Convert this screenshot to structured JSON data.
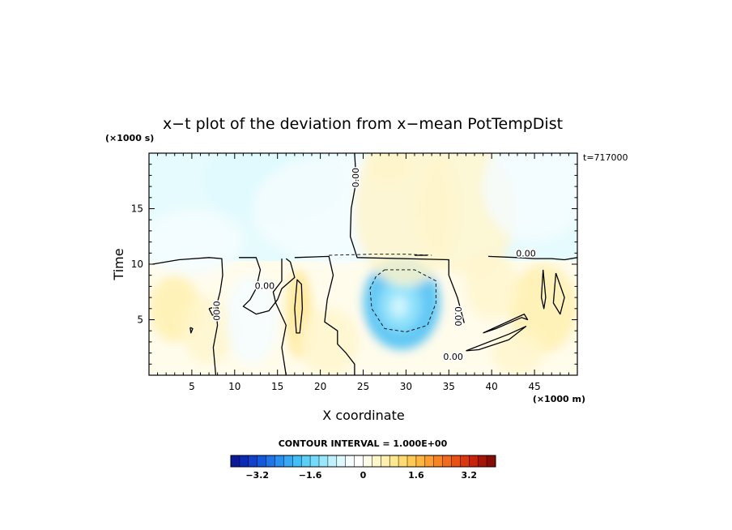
{
  "chart_data": {
    "type": "heatmap",
    "title": "x−t plot of the deviation from x−mean PotTempDist",
    "xlabel": "X coordinate",
    "ylabel": "Time",
    "x_unit": "(×1000 m)",
    "y_unit": "(×1000 s)",
    "time_stamp": "t=717000",
    "xlim": [
      0,
      50
    ],
    "ylim": [
      0,
      20
    ],
    "x_ticks": [
      5,
      10,
      15,
      20,
      25,
      30,
      35,
      40,
      45
    ],
    "y_ticks": [
      5,
      10,
      15
    ],
    "contour_label": "0.00",
    "contour_interval_text": "CONTOUR INTERVAL = 1.000E+00",
    "colorbar": {
      "range": [
        -4,
        4
      ],
      "tick_values": [
        -3.2,
        -1.6,
        0,
        1.6,
        3.2
      ],
      "tick_labels": [
        "−3.2",
        "−1.6",
        "0",
        "1.6",
        "3.2"
      ],
      "colors": [
        "#0a1a9a",
        "#0c2ab4",
        "#1040cc",
        "#1458dc",
        "#1e74e8",
        "#2a90f0",
        "#36a8f4",
        "#44bef6",
        "#58d0f8",
        "#74dcfa",
        "#98e8fb",
        "#bff2fd",
        "#def9fe",
        "#f4fdff",
        "#ffffff",
        "#fffbe6",
        "#fff6cc",
        "#fff0b0",
        "#ffe890",
        "#ffda70",
        "#ffca54",
        "#ffb640",
        "#ff9e30",
        "#fa8424",
        "#f26a1c",
        "#e85014",
        "#dc3810",
        "#c8240c",
        "#a81408",
        "#880c06"
      ]
    },
    "blobs": [
      {
        "x": 29.5,
        "y": 6.5,
        "rx": 4.5,
        "ry": 4.2,
        "v": -2.0
      },
      {
        "x": 29.3,
        "y": 6.3,
        "rx": 2.4,
        "ry": 2.3,
        "v": -1.2
      },
      {
        "x": 29.2,
        "y": 6.2,
        "rx": 1.0,
        "ry": 1.0,
        "v": -0.6
      },
      {
        "x": 14.5,
        "y": 17.5,
        "rx": 8,
        "ry": 3.5,
        "v": -0.7
      },
      {
        "x": 22,
        "y": 15,
        "rx": 10,
        "ry": 5,
        "v": -0.35
      },
      {
        "x": 5,
        "y": 12,
        "rx": 6,
        "ry": 3,
        "v": -0.3
      },
      {
        "x": 30,
        "y": 15,
        "rx": 6,
        "ry": 7,
        "v": 0.45
      },
      {
        "x": 28,
        "y": 19,
        "rx": 3,
        "ry": 2,
        "v": 0.35
      },
      {
        "x": 17.5,
        "y": 5.5,
        "rx": 1.5,
        "ry": 4,
        "v": 0.9
      },
      {
        "x": 21,
        "y": 3,
        "rx": 3.5,
        "ry": 3,
        "v": 0.5
      },
      {
        "x": 3,
        "y": 6,
        "rx": 3,
        "ry": 3,
        "v": 0.7
      },
      {
        "x": 7,
        "y": 4,
        "rx": 3,
        "ry": 3,
        "v": 0.45
      },
      {
        "x": 12,
        "y": 5,
        "rx": 3,
        "ry": 4,
        "v": -0.35
      },
      {
        "x": 46,
        "y": 6,
        "rx": 4,
        "ry": 4,
        "v": 0.6
      },
      {
        "x": 43,
        "y": 2,
        "rx": 3,
        "ry": 2,
        "v": 0.4
      },
      {
        "x": 40,
        "y": 8,
        "rx": 3,
        "ry": 3,
        "v": 0.35
      },
      {
        "x": 37,
        "y": 15,
        "rx": 6,
        "ry": 6,
        "v": 0.3
      },
      {
        "x": 45,
        "y": 17,
        "rx": 6,
        "ry": 5,
        "v": -0.45
      }
    ],
    "contours": [
      {
        "style": "solid",
        "points": [
          [
            24.0,
            20
          ],
          [
            24.2,
            17.5
          ],
          [
            23.6,
            15.0
          ],
          [
            23.5,
            12.5
          ],
          [
            24.3,
            10.6
          ],
          [
            35.0,
            10.4
          ],
          [
            35.0,
            9.0
          ],
          [
            36.0,
            7.0
          ],
          [
            36.8,
            4.7
          ]
        ]
      },
      {
        "style": "solid",
        "points": [
          [
            0.4,
            10.0
          ],
          [
            3.5,
            10.4
          ],
          [
            7.0,
            10.6
          ],
          [
            8.5,
            10.5
          ],
          [
            8.6,
            9.0
          ],
          [
            8.3,
            7.5
          ],
          [
            7.8,
            6.0
          ],
          [
            8.0,
            4.5
          ],
          [
            7.5,
            2.5
          ],
          [
            7.8,
            0
          ]
        ]
      },
      {
        "style": "solid",
        "points": [
          [
            10.5,
            10.6
          ],
          [
            12.5,
            10.6
          ],
          [
            13.0,
            9.5
          ],
          [
            12.5,
            7.8
          ],
          [
            11.8,
            6.8
          ],
          [
            11.0,
            6.2
          ],
          [
            12.5,
            5.5
          ],
          [
            14.0,
            5.8
          ],
          [
            15.0,
            6.8
          ],
          [
            15.5,
            7.8
          ],
          [
            17.0,
            8.8
          ],
          [
            16.5,
            10.2
          ],
          [
            16.0,
            10.5
          ]
        ]
      },
      {
        "style": "solid",
        "points": [
          [
            15.5,
            10.5
          ],
          [
            15.5,
            8.5
          ],
          [
            14.5,
            7.5
          ],
          [
            14.8,
            6.5
          ],
          [
            16.0,
            4.5
          ],
          [
            15.5,
            2.5
          ],
          [
            16.0,
            0
          ]
        ]
      },
      {
        "style": "solid",
        "points": [
          [
            17.0,
            10.6
          ],
          [
            21.0,
            10.7
          ],
          [
            21.5,
            9.0
          ],
          [
            20.8,
            6.8
          ],
          [
            20.5,
            4.8
          ],
          [
            22.0,
            4.0
          ],
          [
            22.0,
            2.8
          ],
          [
            23.0,
            2.0
          ],
          [
            24.0,
            1.0
          ],
          [
            24.0,
            0
          ]
        ]
      },
      {
        "style": "solid",
        "points": [
          [
            37.0,
            2.2
          ],
          [
            42.0,
            3.7
          ],
          [
            44.0,
            4.4
          ],
          [
            42.0,
            3.2
          ],
          [
            38.5,
            2.3
          ],
          [
            37.0,
            2.2
          ]
        ]
      },
      {
        "style": "solid",
        "points": [
          [
            39.0,
            3.8
          ],
          [
            43.8,
            5.5
          ],
          [
            44.2,
            5.0
          ],
          [
            43.5,
            5.2
          ],
          [
            40.5,
            4.2
          ],
          [
            39.0,
            3.8
          ]
        ]
      },
      {
        "style": "solid",
        "points": [
          [
            17.0,
            6.0
          ],
          [
            17.3,
            8.6
          ],
          [
            17.8,
            8.2
          ],
          [
            17.9,
            6.0
          ],
          [
            17.6,
            3.8
          ],
          [
            17.2,
            3.8
          ],
          [
            17.0,
            6.0
          ]
        ]
      },
      {
        "style": "solid",
        "points": [
          [
            39.6,
            10.7
          ],
          [
            43.0,
            10.6
          ],
          [
            45.0,
            10.5
          ],
          [
            47.0,
            10.5
          ],
          [
            48.5,
            10.4
          ],
          [
            50.0,
            10.6
          ]
        ]
      },
      {
        "style": "solid",
        "points": [
          [
            47.5,
            9.2
          ],
          [
            48.5,
            7.0
          ],
          [
            48.0,
            5.5
          ],
          [
            47.2,
            6.5
          ],
          [
            47.5,
            9.2
          ]
        ]
      },
      {
        "style": "solid",
        "points": [
          [
            46.0,
            9.5
          ],
          [
            46.3,
            7.0
          ],
          [
            46.1,
            6.0
          ],
          [
            45.8,
            7.0
          ],
          [
            46.0,
            9.5
          ]
        ]
      },
      {
        "style": "solid",
        "points": [
          [
            7.0,
            6.0
          ],
          [
            8.0,
            6.2
          ],
          [
            8.2,
            5.6
          ],
          [
            7.4,
            5.4
          ],
          [
            7.0,
            6.0
          ]
        ]
      },
      {
        "style": "solid",
        "points": [
          [
            4.8,
            4.3
          ],
          [
            4.9,
            3.8
          ],
          [
            5.1,
            4.2
          ],
          [
            4.8,
            4.3
          ]
        ]
      },
      {
        "style": "solid",
        "points": [
          [
            31.0,
            10.8
          ],
          [
            32.5,
            10.8
          ]
        ]
      },
      {
        "style": "dashed",
        "points": [
          [
            27.5,
            9.5
          ],
          [
            31.0,
            9.5
          ],
          [
            33.5,
            8.5
          ],
          [
            33.5,
            6.5
          ],
          [
            32.5,
            4.5
          ],
          [
            30.0,
            3.9
          ],
          [
            27.5,
            4.2
          ],
          [
            26.0,
            6.0
          ],
          [
            25.8,
            7.8
          ],
          [
            26.5,
            8.9
          ],
          [
            27.5,
            9.5
          ]
        ]
      },
      {
        "style": "dashed",
        "points": [
          [
            21.0,
            10.8
          ],
          [
            26.0,
            10.9
          ],
          [
            30.0,
            10.9
          ],
          [
            33.0,
            10.8
          ]
        ]
      }
    ],
    "contour_labels": [
      {
        "x": 24.2,
        "y": 17.8,
        "rotate": -90
      },
      {
        "x": 13.5,
        "y": 8.0,
        "rotate": 0
      },
      {
        "x": 7.8,
        "y": 5.8,
        "rotate": 90
      },
      {
        "x": 36.0,
        "y": 5.3,
        "rotate": 90
      },
      {
        "x": 35.5,
        "y": 1.6,
        "rotate": 0
      },
      {
        "x": 44.0,
        "y": 10.9,
        "rotate": 0
      }
    ]
  }
}
